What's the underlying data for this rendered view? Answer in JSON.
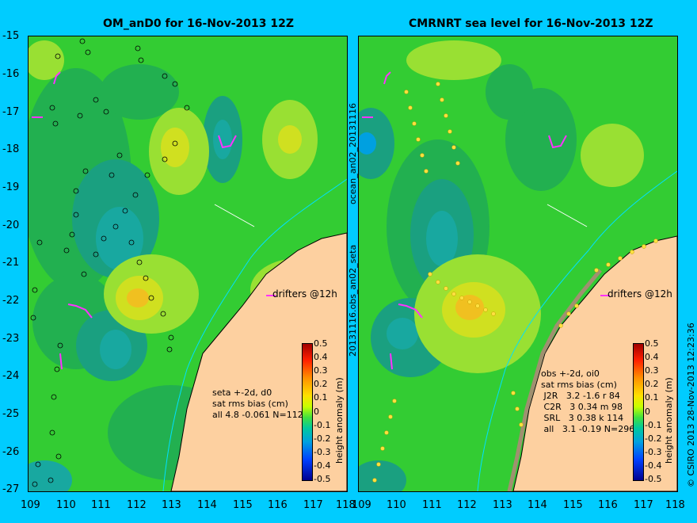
{
  "titles": {
    "left": "OM_anD0 for 16-Nov-2013 12Z",
    "right": "CMRNRT sea level  for 16-Nov-2013 12Z"
  },
  "axes": {
    "y_ticks": [
      "-15",
      "-16",
      "-17",
      "-18",
      "-19",
      "-20",
      "-21",
      "-22",
      "-23",
      "-24",
      "-25",
      "-26",
      "-27"
    ],
    "x_ticks": [
      "109",
      "110",
      "111",
      "112",
      "113",
      "114",
      "115",
      "116",
      "117",
      "118"
    ]
  },
  "side_labels": {
    "middle_top": "ocean_an02_20131116",
    "middle_bottom": "20131116.obs_an02_seta",
    "credit": "© CSIRO 2013   28-Nov-2013 12:23:36"
  },
  "left_panel": {
    "stats": "seta +-2d, d0\nsat rms bias (cm)\nall 4.8 -0.061 N=112",
    "drifters_label": "drifters @12h"
  },
  "right_panel": {
    "stats": "obs +-2d, oi0\nsat rms bias (cm)\n J2R   3.2 -1.6 r 84\n C2R   3 0.34 m 98\n SRL   3 0.38 k 114\n all   3.1 -0.19 N=296",
    "drifters_label": "drifters @12h"
  },
  "colorbar": {
    "label": "height anomaly (m)",
    "ticks": [
      "0.5",
      "0.4",
      "0.3",
      "0.2",
      "0.1",
      "0",
      "-0.1",
      "-0.2",
      "-0.3",
      "-0.4",
      "-0.5"
    ]
  },
  "colors": {
    "background": "#00ccff",
    "land": "#fdd0a0",
    "sea_base": "#33cc33",
    "drifter": "#ff33ff"
  }
}
